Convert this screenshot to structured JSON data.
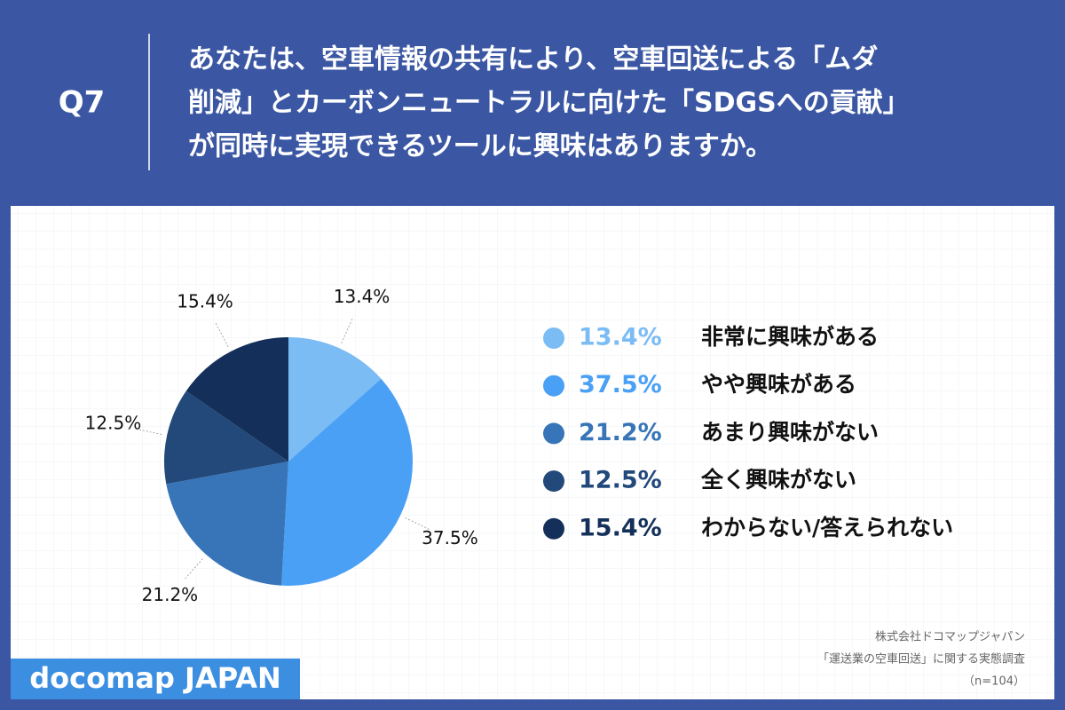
{
  "chart_data": {
    "type": "pie",
    "question_number": "Q7",
    "title": [
      "あなたは、空車情報の共有により、空車回送による「ムダ",
      "削減」とカーボンニュートラルに向けた「SDGSへの貢献」",
      "が同時に実現できるツールに興味はありますか。"
    ],
    "categories": [
      "非常に興味がある",
      "やや興味がある",
      "あまり興味がない",
      "全く興味がない",
      "わからない/答えられない"
    ],
    "values": [
      13.4,
      37.5,
      21.2,
      12.5,
      15.4
    ],
    "value_labels": [
      "13.4%",
      "37.5%",
      "21.2%",
      "12.5%",
      "15.4%"
    ],
    "colors": [
      "#7bbcf5",
      "#4aa0f5",
      "#3775b8",
      "#22497a",
      "#14305a"
    ],
    "source": [
      "株式会社ドコマップジャパン",
      "「運送業の空車回送」に関する実態調査",
      "（n=104）"
    ],
    "logo": "docomap JAPAN"
  }
}
